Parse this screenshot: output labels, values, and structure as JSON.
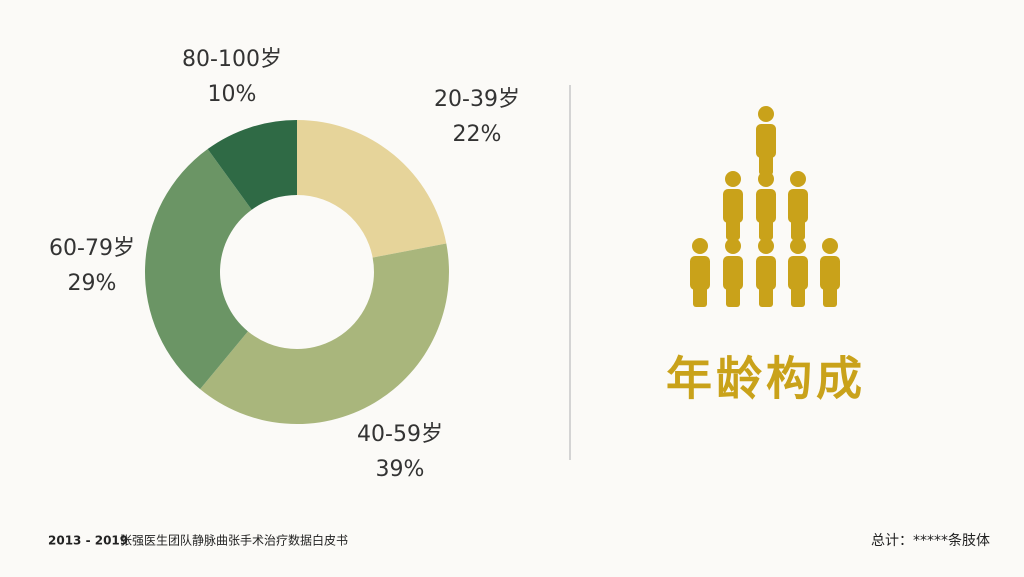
{
  "chart_data": {
    "type": "donut",
    "title": "年龄构成",
    "categories": [
      "20-39岁",
      "40-59岁",
      "60-79岁",
      "80-100岁"
    ],
    "values": [
      22,
      39,
      29,
      10
    ],
    "value_labels": [
      "22%",
      "39%",
      "29%",
      "10%"
    ],
    "colors": [
      "#e6d49a",
      "#a9b67c",
      "#6b9565",
      "#2f6a45"
    ]
  },
  "footer": {
    "years": "2013 - 2019",
    "source": "张强医生团队静脉曲张手术治疗数据白皮书",
    "total": "总计：*****条肢体"
  }
}
